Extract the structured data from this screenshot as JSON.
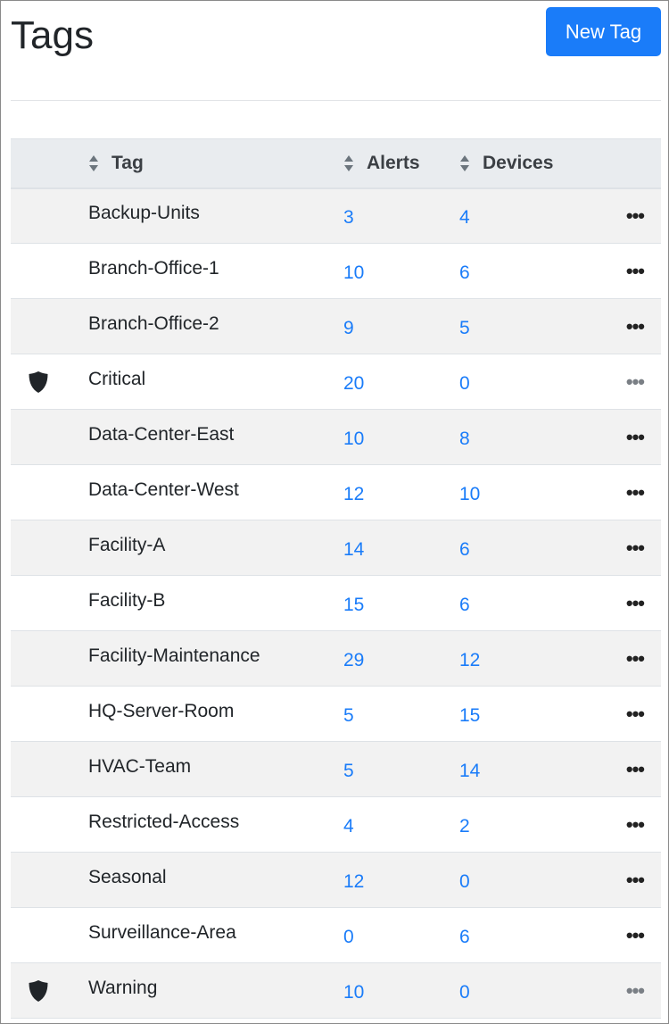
{
  "header": {
    "title": "Tags",
    "new_tag_label": "New Tag"
  },
  "table": {
    "columns": {
      "tag": "Tag",
      "alerts": "Alerts",
      "devices": "Devices"
    },
    "rows": [
      {
        "tag": "Backup-Units",
        "alerts": "3",
        "devices": "4",
        "protected": false
      },
      {
        "tag": "Branch-Office-1",
        "alerts": "10",
        "devices": "6",
        "protected": false
      },
      {
        "tag": "Branch-Office-2",
        "alerts": "9",
        "devices": "5",
        "protected": false
      },
      {
        "tag": "Critical",
        "alerts": "20",
        "devices": "0",
        "protected": true
      },
      {
        "tag": "Data-Center-East",
        "alerts": "10",
        "devices": "8",
        "protected": false
      },
      {
        "tag": "Data-Center-West",
        "alerts": "12",
        "devices": "10",
        "protected": false
      },
      {
        "tag": "Facility-A",
        "alerts": "14",
        "devices": "6",
        "protected": false
      },
      {
        "tag": "Facility-B",
        "alerts": "15",
        "devices": "6",
        "protected": false
      },
      {
        "tag": "Facility-Maintenance",
        "alerts": "29",
        "devices": "12",
        "protected": false
      },
      {
        "tag": "HQ-Server-Room",
        "alerts": "5",
        "devices": "15",
        "protected": false
      },
      {
        "tag": "HVAC-Team",
        "alerts": "5",
        "devices": "14",
        "protected": false
      },
      {
        "tag": "Restricted-Access",
        "alerts": "4",
        "devices": "2",
        "protected": false
      },
      {
        "tag": "Seasonal",
        "alerts": "12",
        "devices": "0",
        "protected": false
      },
      {
        "tag": "Surveillance-Area",
        "alerts": "0",
        "devices": "6",
        "protected": false
      },
      {
        "tag": "Warning",
        "alerts": "10",
        "devices": "0",
        "protected": true
      }
    ]
  },
  "icons": {
    "protected": "shield-icon",
    "actions": "more-horizontal-icon",
    "sort": "sort-icon"
  },
  "colors": {
    "accent": "#1a7cf9"
  }
}
